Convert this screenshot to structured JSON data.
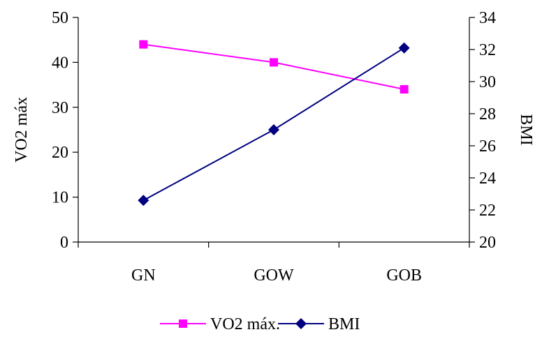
{
  "chart_data": {
    "type": "line",
    "categories": [
      "GN",
      "GOW",
      "GOB"
    ],
    "y_left": {
      "label": "VO2 máx",
      "lim": [
        0,
        50
      ],
      "ticks": [
        0,
        10,
        20,
        30,
        40,
        50
      ]
    },
    "y_right": {
      "label": "BMI",
      "lim": [
        20,
        34
      ],
      "ticks": [
        20,
        22,
        24,
        26,
        28,
        30,
        32,
        34
      ]
    },
    "series": [
      {
        "name": "VO2 máx.",
        "axis": "left",
        "values": [
          44,
          40,
          34
        ],
        "color": "#ff00ff",
        "marker": "square"
      },
      {
        "name": "BMI",
        "axis": "right",
        "values": [
          22.6,
          27.0,
          32.1
        ],
        "color": "#000080",
        "marker": "diamond"
      }
    ],
    "grid": false,
    "legend_position": "bottom"
  }
}
